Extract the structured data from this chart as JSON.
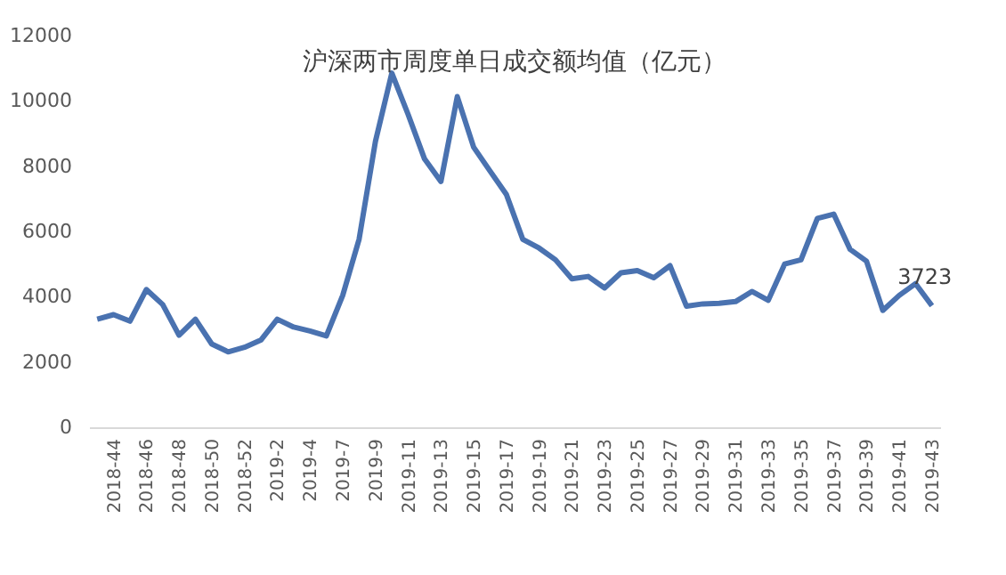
{
  "chart_data": {
    "type": "line",
    "title": "沪深两市周度单日成交额均值（亿元）",
    "categories": [
      null,
      "2018-44",
      null,
      "2018-46",
      null,
      "2018-48",
      null,
      "2018-50",
      null,
      "2018-52",
      null,
      "2019-2",
      null,
      "2019-4",
      null,
      "2019-7",
      null,
      "2019-9",
      null,
      "2019-11",
      null,
      "2019-13",
      null,
      "2019-15",
      null,
      "2019-17",
      null,
      "2019-19",
      null,
      "2019-21",
      null,
      "2019-23",
      null,
      "2019-25",
      null,
      "2019-27",
      null,
      "2019-29",
      null,
      "2019-31",
      null,
      "2019-33",
      null,
      "2019-35",
      null,
      "2019-37",
      null,
      "2019-39",
      null,
      "2019-41",
      null,
      "2019-43"
    ],
    "series": [
      {
        "color": "#4a72b0",
        "values": [
          3310,
          3450,
          3250,
          4220,
          3760,
          2820,
          3310,
          2550,
          2310,
          2450,
          2670,
          3310,
          3070,
          2950,
          2800,
          4040,
          5760,
          8760,
          10850,
          9580,
          8220,
          7530,
          10130,
          8580,
          7850,
          7130,
          5760,
          5490,
          5130,
          4550,
          4620,
          4270,
          4730,
          4800,
          4580,
          4950,
          3710,
          3780,
          3800,
          3850,
          4160,
          3890,
          5000,
          5130,
          6400,
          6530,
          5450,
          5090,
          3580,
          4040,
          4400,
          3723
        ],
        "value_labels": [
          null,
          null,
          null,
          null,
          null,
          null,
          null,
          null,
          null,
          null,
          null,
          null,
          null,
          null,
          null,
          null,
          null,
          null,
          null,
          null,
          null,
          null,
          null,
          null,
          null,
          null,
          null,
          null,
          null,
          null,
          null,
          null,
          null,
          null,
          null,
          null,
          null,
          null,
          null,
          null,
          null,
          null,
          null,
          null,
          null,
          null,
          null,
          null,
          null,
          null,
          null,
          "3723"
        ]
      }
    ],
    "ylim": [
      0,
      12000
    ],
    "yticks": [
      0,
      2000,
      4000,
      6000,
      8000,
      10000,
      12000
    ],
    "grid": false,
    "legend": false,
    "marker": "none",
    "line_style": "solid"
  }
}
